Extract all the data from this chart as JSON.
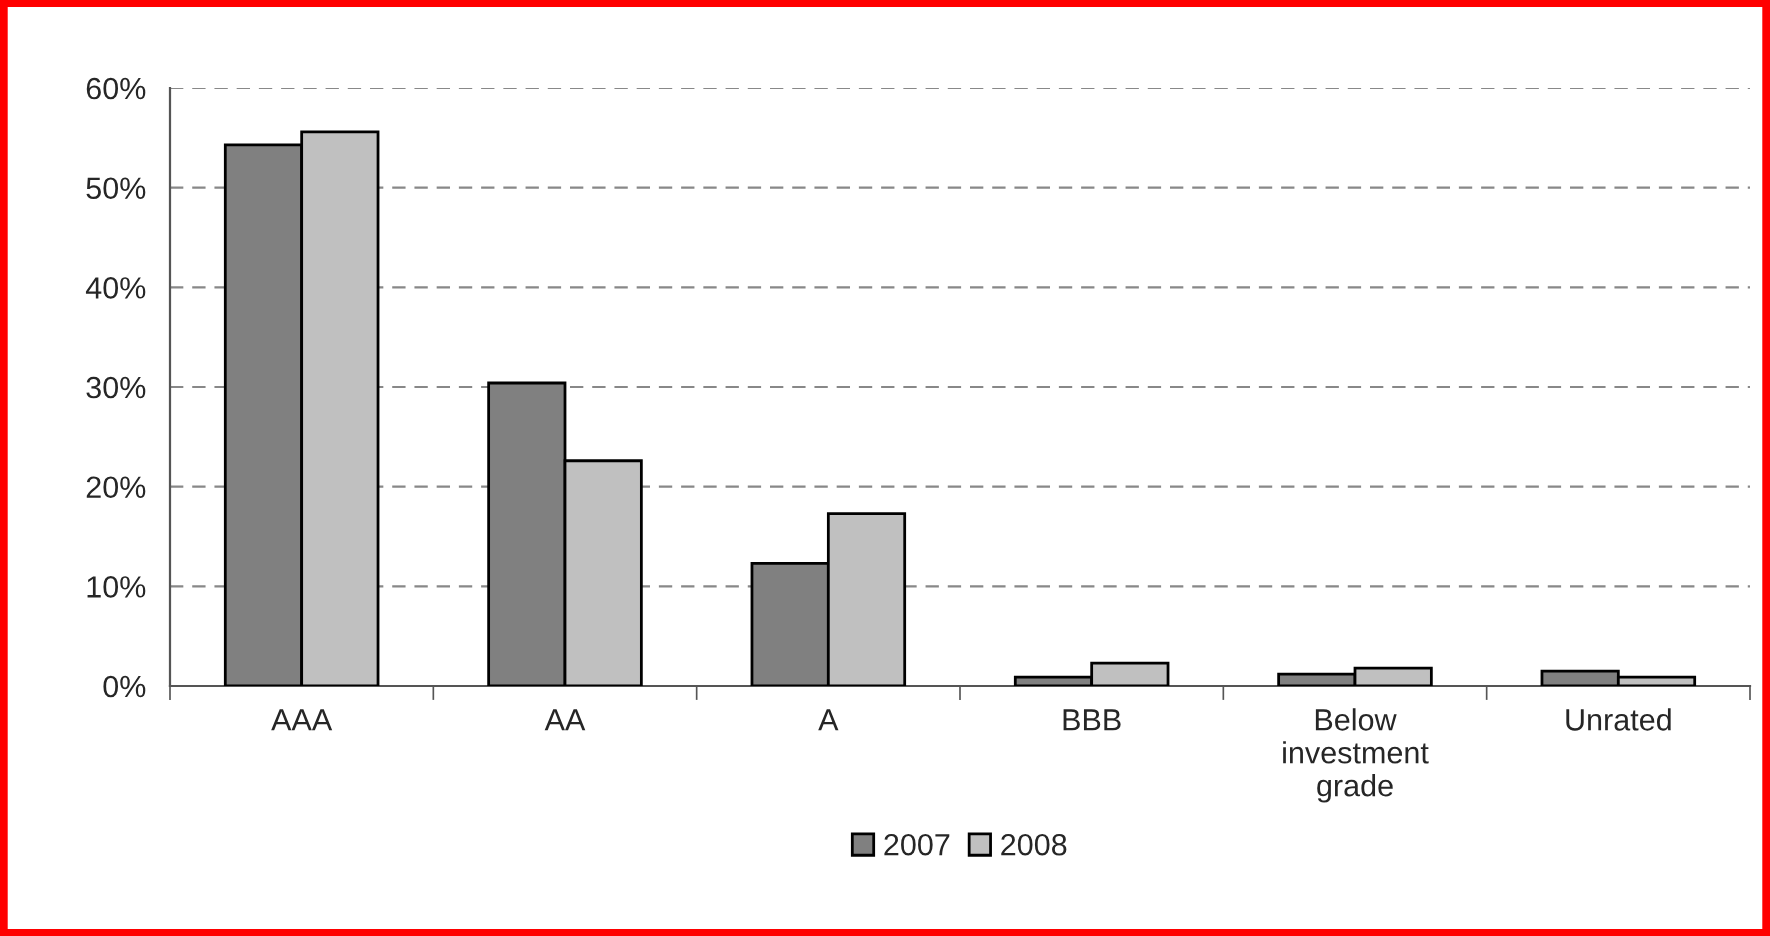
{
  "chart_data": {
    "type": "bar",
    "categories": [
      "AAA",
      "AA",
      "A",
      "BBB",
      "Below investment grade",
      "Unrated"
    ],
    "series": [
      {
        "name": "2007",
        "color": "#808080",
        "values": [
          54.3,
          30.4,
          12.3,
          0.9,
          1.2,
          1.5
        ]
      },
      {
        "name": "2008",
        "color": "#c0c0c0",
        "values": [
          55.6,
          22.6,
          17.3,
          2.3,
          1.8,
          0.9
        ]
      }
    ],
    "ylim": [
      0,
      60
    ],
    "yticks": [
      {
        "value": 0,
        "label": "0%"
      },
      {
        "value": 10,
        "label": "10%"
      },
      {
        "value": 20,
        "label": "20%"
      },
      {
        "value": 30,
        "label": "30%"
      },
      {
        "value": 40,
        "label": "40%"
      },
      {
        "value": 50,
        "label": "50%"
      },
      {
        "value": 60,
        "label": "60%"
      }
    ],
    "grid": "y",
    "legend": "bottom"
  }
}
